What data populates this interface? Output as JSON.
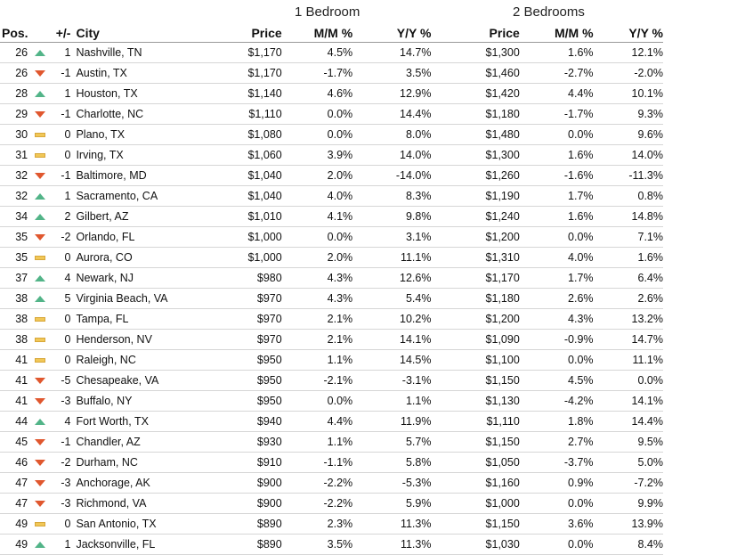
{
  "groups": {
    "one_bedroom": "1 Bedroom",
    "two_bedrooms": "2 Bedrooms"
  },
  "headers": {
    "pos": "Pos.",
    "change": "+/-",
    "city": "City",
    "price1": "Price",
    "mm1": "M/M %",
    "yy1": "Y/Y %",
    "price2": "Price",
    "mm2": "M/M %",
    "yy2": "Y/Y %"
  },
  "indicator_colors": {
    "up": "#52b488",
    "down": "#e0572e",
    "flat": "#f1c757"
  },
  "rows": [
    {
      "pos": "26",
      "trend": "up",
      "chg": "1",
      "city": "Nashville, TN",
      "p1": "$1,170",
      "mm1": "4.5%",
      "yy1": "14.7%",
      "p2": "$1,300",
      "mm2": "1.6%",
      "yy2": "12.1%"
    },
    {
      "pos": "26",
      "trend": "down",
      "chg": "-1",
      "city": "Austin, TX",
      "p1": "$1,170",
      "mm1": "-1.7%",
      "yy1": "3.5%",
      "p2": "$1,460",
      "mm2": "-2.7%",
      "yy2": "-2.0%"
    },
    {
      "pos": "28",
      "trend": "up",
      "chg": "1",
      "city": "Houston, TX",
      "p1": "$1,140",
      "mm1": "4.6%",
      "yy1": "12.9%",
      "p2": "$1,420",
      "mm2": "4.4%",
      "yy2": "10.1%"
    },
    {
      "pos": "29",
      "trend": "down",
      "chg": "-1",
      "city": "Charlotte, NC",
      "p1": "$1,110",
      "mm1": "0.0%",
      "yy1": "14.4%",
      "p2": "$1,180",
      "mm2": "-1.7%",
      "yy2": "9.3%"
    },
    {
      "pos": "30",
      "trend": "flat",
      "chg": "0",
      "city": "Plano, TX",
      "p1": "$1,080",
      "mm1": "0.0%",
      "yy1": "8.0%",
      "p2": "$1,480",
      "mm2": "0.0%",
      "yy2": "9.6%"
    },
    {
      "pos": "31",
      "trend": "flat",
      "chg": "0",
      "city": "Irving, TX",
      "p1": "$1,060",
      "mm1": "3.9%",
      "yy1": "14.0%",
      "p2": "$1,300",
      "mm2": "1.6%",
      "yy2": "14.0%"
    },
    {
      "pos": "32",
      "trend": "down",
      "chg": "-1",
      "city": "Baltimore, MD",
      "p1": "$1,040",
      "mm1": "2.0%",
      "yy1": "-14.0%",
      "p2": "$1,260",
      "mm2": "-1.6%",
      "yy2": "-11.3%"
    },
    {
      "pos": "32",
      "trend": "up",
      "chg": "1",
      "city": "Sacramento, CA",
      "p1": "$1,040",
      "mm1": "4.0%",
      "yy1": "8.3%",
      "p2": "$1,190",
      "mm2": "1.7%",
      "yy2": "0.8%"
    },
    {
      "pos": "34",
      "trend": "up",
      "chg": "2",
      "city": "Gilbert, AZ",
      "p1": "$1,010",
      "mm1": "4.1%",
      "yy1": "9.8%",
      "p2": "$1,240",
      "mm2": "1.6%",
      "yy2": "14.8%"
    },
    {
      "pos": "35",
      "trend": "down",
      "chg": "-2",
      "city": "Orlando, FL",
      "p1": "$1,000",
      "mm1": "0.0%",
      "yy1": "3.1%",
      "p2": "$1,200",
      "mm2": "0.0%",
      "yy2": "7.1%"
    },
    {
      "pos": "35",
      "trend": "flat",
      "chg": "0",
      "city": "Aurora, CO",
      "p1": "$1,000",
      "mm1": "2.0%",
      "yy1": "11.1%",
      "p2": "$1,310",
      "mm2": "4.0%",
      "yy2": "1.6%"
    },
    {
      "pos": "37",
      "trend": "up",
      "chg": "4",
      "city": "Newark, NJ",
      "p1": "$980",
      "mm1": "4.3%",
      "yy1": "12.6%",
      "p2": "$1,170",
      "mm2": "1.7%",
      "yy2": "6.4%"
    },
    {
      "pos": "38",
      "trend": "up",
      "chg": "5",
      "city": "Virginia Beach, VA",
      "p1": "$970",
      "mm1": "4.3%",
      "yy1": "5.4%",
      "p2": "$1,180",
      "mm2": "2.6%",
      "yy2": "2.6%"
    },
    {
      "pos": "38",
      "trend": "flat",
      "chg": "0",
      "city": "Tampa, FL",
      "p1": "$970",
      "mm1": "2.1%",
      "yy1": "10.2%",
      "p2": "$1,200",
      "mm2": "4.3%",
      "yy2": "13.2%"
    },
    {
      "pos": "38",
      "trend": "flat",
      "chg": "0",
      "city": "Henderson, NV",
      "p1": "$970",
      "mm1": "2.1%",
      "yy1": "14.1%",
      "p2": "$1,090",
      "mm2": "-0.9%",
      "yy2": "14.7%"
    },
    {
      "pos": "41",
      "trend": "flat",
      "chg": "0",
      "city": "Raleigh, NC",
      "p1": "$950",
      "mm1": "1.1%",
      "yy1": "14.5%",
      "p2": "$1,100",
      "mm2": "0.0%",
      "yy2": "11.1%"
    },
    {
      "pos": "41",
      "trend": "down",
      "chg": "-5",
      "city": "Chesapeake, VA",
      "p1": "$950",
      "mm1": "-2.1%",
      "yy1": "-3.1%",
      "p2": "$1,150",
      "mm2": "4.5%",
      "yy2": "0.0%"
    },
    {
      "pos": "41",
      "trend": "down",
      "chg": "-3",
      "city": "Buffalo, NY",
      "p1": "$950",
      "mm1": "0.0%",
      "yy1": "1.1%",
      "p2": "$1,130",
      "mm2": "-4.2%",
      "yy2": "14.1%"
    },
    {
      "pos": "44",
      "trend": "up",
      "chg": "4",
      "city": "Fort Worth, TX",
      "p1": "$940",
      "mm1": "4.4%",
      "yy1": "11.9%",
      "p2": "$1,110",
      "mm2": "1.8%",
      "yy2": "14.4%"
    },
    {
      "pos": "45",
      "trend": "down",
      "chg": "-1",
      "city": "Chandler, AZ",
      "p1": "$930",
      "mm1": "1.1%",
      "yy1": "5.7%",
      "p2": "$1,150",
      "mm2": "2.7%",
      "yy2": "9.5%"
    },
    {
      "pos": "46",
      "trend": "down",
      "chg": "-2",
      "city": "Durham, NC",
      "p1": "$910",
      "mm1": "-1.1%",
      "yy1": "5.8%",
      "p2": "$1,050",
      "mm2": "-3.7%",
      "yy2": "5.0%"
    },
    {
      "pos": "47",
      "trend": "down",
      "chg": "-3",
      "city": "Anchorage, AK",
      "p1": "$900",
      "mm1": "-2.2%",
      "yy1": "-5.3%",
      "p2": "$1,160",
      "mm2": "0.9%",
      "yy2": "-7.2%"
    },
    {
      "pos": "47",
      "trend": "down",
      "chg": "-3",
      "city": "Richmond, VA",
      "p1": "$900",
      "mm1": "-2.2%",
      "yy1": "5.9%",
      "p2": "$1,000",
      "mm2": "0.0%",
      "yy2": "9.9%"
    },
    {
      "pos": "49",
      "trend": "flat",
      "chg": "0",
      "city": "San Antonio, TX",
      "p1": "$890",
      "mm1": "2.3%",
      "yy1": "11.3%",
      "p2": "$1,150",
      "mm2": "3.6%",
      "yy2": "13.9%"
    },
    {
      "pos": "49",
      "trend": "up",
      "chg": "1",
      "city": "Jacksonville, FL",
      "p1": "$890",
      "mm1": "3.5%",
      "yy1": "11.3%",
      "p2": "$1,030",
      "mm2": "0.0%",
      "yy2": "8.4%"
    }
  ]
}
